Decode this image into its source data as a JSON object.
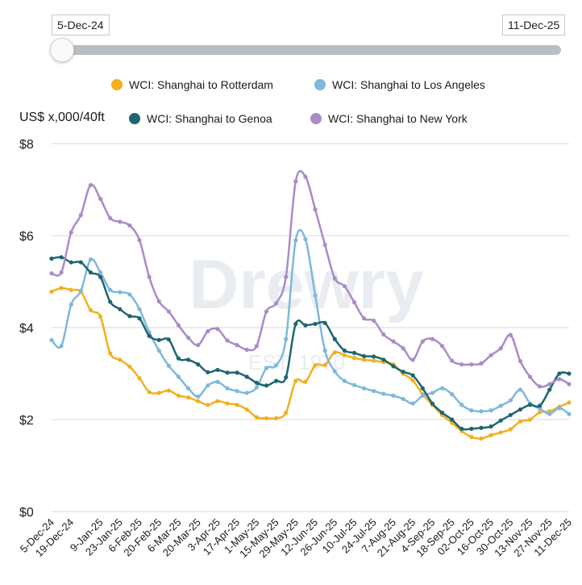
{
  "slider": {
    "start_label": "5-Dec-24",
    "end_label": "11-Dec-25"
  },
  "watermark": {
    "brand": "Drewry",
    "est": "EST. 1970"
  },
  "colors": {
    "rotterdam": "#f2b01e",
    "los_angeles": "#7fb8dc",
    "genoa": "#1e6670",
    "new_york": "#a98bc9",
    "grid": "#d9d9d9",
    "slider_track": "#b9bec4"
  },
  "chart_data": {
    "type": "line",
    "ylabel": "US$ x,000/40ft",
    "ylim": [
      0,
      8
    ],
    "yticks": [
      0,
      2,
      4,
      6,
      8
    ],
    "ytick_labels": [
      "$0",
      "$2",
      "$4",
      "$6",
      "$8"
    ],
    "grid": "horizontal",
    "legend_position": "top",
    "x": [
      "5-Dec-24",
      "12-Dec-24",
      "19-Dec-24",
      "26-Dec-24",
      "2-Jan-25",
      "9-Jan-25",
      "16-Jan-25",
      "23-Jan-25",
      "30-Jan-25",
      "6-Feb-25",
      "13-Feb-25",
      "20-Feb-25",
      "27-Feb-25",
      "6-Mar-25",
      "13-Mar-25",
      "20-Mar-25",
      "27-Mar-25",
      "3-Apr-25",
      "10-Apr-25",
      "17-Apr-25",
      "24-Apr-25",
      "1-May-25",
      "8-May-25",
      "15-May-25",
      "22-May-25",
      "29-May-25",
      "5-Jun-25",
      "12-Jun-25",
      "19-Jun-25",
      "26-Jun-25",
      "3-Jul-25",
      "10-Jul-25",
      "17-Jul-25",
      "24-Jul-25",
      "31-Jul-25",
      "7-Aug-25",
      "14-Aug-25",
      "21-Aug-25",
      "28-Aug-25",
      "4-Sep-25",
      "11-Sep-25",
      "18-Sep-25",
      "25-Sep-25",
      "02-Oct-25",
      "09-Oct-25",
      "16-Oct-25",
      "23-Oct-25",
      "30-Oct-25",
      "6-Nov-25",
      "13-Nov-25",
      "20-Nov-25",
      "27-Nov-25",
      "4-Dec-25",
      "11-Dec-25"
    ],
    "x_tick_labels": [
      "5-Dec-24",
      "19-Dec-24",
      "9-Jan-25",
      "23-Jan-25",
      "6-Feb-25",
      "20-Feb-25",
      "6-Mar-25",
      "20-Mar-25",
      "3-Apr-25",
      "17-Apr-25",
      "1-May-25",
      "15-May-25",
      "29-May-25",
      "12-Jun-25",
      "26-Jun-25",
      "10-Jul-25",
      "24-Jul-25",
      "7-Aug-25",
      "21-Aug-25",
      "4-Sep-25",
      "18-Sep-25",
      "02-Oct-25",
      "16-Oct-25",
      "30-Oct-25",
      "13-Nov-25",
      "27-Nov-25",
      "11-Dec-25"
    ],
    "series": [
      {
        "name": "WCI: Shanghai to Rotterdam",
        "color": "#f2b01e",
        "values": [
          4.78,
          4.86,
          4.82,
          4.78,
          4.38,
          4.24,
          3.44,
          3.3,
          3.15,
          2.9,
          2.6,
          2.58,
          2.63,
          2.52,
          2.48,
          2.4,
          2.32,
          2.4,
          2.35,
          2.32,
          2.22,
          2.05,
          2.03,
          2.03,
          2.15,
          2.84,
          2.82,
          3.18,
          3.19,
          3.46,
          3.4,
          3.34,
          3.3,
          3.28,
          3.25,
          3.2,
          3.0,
          2.85,
          2.55,
          2.32,
          2.1,
          1.93,
          1.75,
          1.62,
          1.59,
          1.66,
          1.72,
          1.79,
          1.96,
          2.0,
          2.16,
          2.18,
          2.28,
          2.37
        ]
      },
      {
        "name": "WCI: Shanghai to Los Angeles",
        "color": "#7fb8dc",
        "values": [
          3.73,
          3.6,
          4.5,
          4.8,
          5.48,
          5.2,
          4.82,
          4.77,
          4.72,
          4.4,
          3.9,
          3.5,
          3.17,
          2.93,
          2.68,
          2.5,
          2.74,
          2.82,
          2.68,
          2.62,
          2.58,
          2.7,
          3.12,
          3.18,
          3.75,
          5.9,
          5.92,
          4.7,
          3.5,
          3.05,
          2.84,
          2.75,
          2.68,
          2.62,
          2.56,
          2.52,
          2.45,
          2.35,
          2.52,
          2.58,
          2.68,
          2.55,
          2.32,
          2.2,
          2.18,
          2.2,
          2.3,
          2.42,
          2.65,
          2.35,
          2.24,
          2.12,
          2.25,
          2.12
        ]
      },
      {
        "name": "WCI: Shanghai to Genoa",
        "color": "#1e6670",
        "values": [
          5.5,
          5.53,
          5.42,
          5.42,
          5.2,
          5.1,
          4.56,
          4.4,
          4.25,
          4.2,
          3.82,
          3.73,
          3.74,
          3.33,
          3.3,
          3.2,
          3.03,
          3.08,
          3.02,
          3.02,
          2.93,
          2.8,
          2.74,
          2.84,
          2.92,
          4.08,
          4.05,
          4.08,
          4.1,
          3.75,
          3.5,
          3.45,
          3.38,
          3.37,
          3.3,
          3.16,
          3.04,
          2.96,
          2.68,
          2.35,
          2.15,
          2.0,
          1.8,
          1.8,
          1.82,
          1.85,
          1.98,
          2.1,
          2.22,
          2.32,
          2.3,
          2.65,
          3.0,
          3.0
        ]
      },
      {
        "name": "WCI: Shanghai to New York",
        "color": "#a98bc9",
        "values": [
          5.18,
          5.2,
          6.07,
          6.45,
          7.1,
          6.8,
          6.38,
          6.3,
          6.22,
          5.9,
          5.1,
          4.57,
          4.35,
          4.05,
          3.78,
          3.62,
          3.92,
          3.97,
          3.72,
          3.62,
          3.52,
          3.6,
          4.35,
          4.53,
          5.1,
          7.18,
          7.28,
          6.57,
          5.8,
          5.07,
          4.9,
          4.55,
          4.2,
          4.15,
          3.85,
          3.7,
          3.55,
          3.3,
          3.7,
          3.75,
          3.6,
          3.28,
          3.2,
          3.2,
          3.22,
          3.4,
          3.55,
          3.84,
          3.27,
          2.93,
          2.72,
          2.77,
          2.88,
          2.77
        ]
      }
    ]
  }
}
